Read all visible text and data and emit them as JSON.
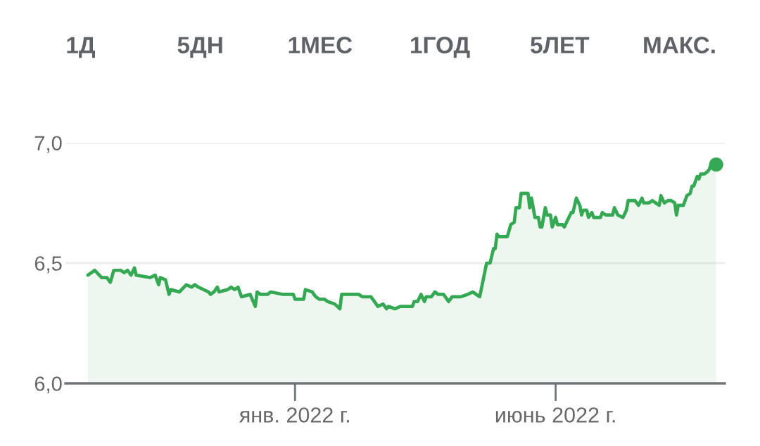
{
  "chart_data": {
    "type": "area",
    "annotations": [
      "1Д",
      "5ДН",
      "1МЕС",
      "1ГОД",
      "5ЛЕТ",
      "МАКС."
    ],
    "x": [
      "2021-09-03",
      "2021-09-07",
      "2021-09-11",
      "2021-09-14",
      "2021-09-16",
      "2021-09-18",
      "2021-09-22",
      "2021-09-24",
      "2021-09-26",
      "2021-09-28",
      "2021-09-30",
      "2021-10-01",
      "2021-10-09",
      "2021-10-12",
      "2021-10-14",
      "2021-10-15",
      "2021-10-18",
      "2021-10-20",
      "2021-10-21",
      "2021-10-26",
      "2021-10-30",
      "2021-11-02",
      "2021-11-04",
      "2021-11-06",
      "2021-11-12",
      "2021-11-13",
      "2021-11-15",
      "2021-11-17",
      "2021-11-18",
      "2021-11-23",
      "2021-11-25",
      "2021-11-27",
      "2021-11-29",
      "2021-12-01",
      "2021-12-06",
      "2021-12-09",
      "2021-12-10",
      "2021-12-12",
      "2021-12-16",
      "2021-12-18",
      "2021-12-25",
      "2021-12-28",
      "2021-12-31",
      "2022-01-01",
      "2022-01-06",
      "2022-01-07",
      "2022-01-11",
      "2022-01-13",
      "2022-01-15",
      "2022-01-18",
      "2022-01-20",
      "2022-01-24",
      "2022-01-27",
      "2022-01-28",
      "2022-02-07",
      "2022-02-09",
      "2022-02-14",
      "2022-02-16",
      "2022-02-18",
      "2022-02-21",
      "2022-02-23",
      "2022-02-24",
      "2022-02-28",
      "2022-03-03",
      "2022-03-07",
      "2022-03-10",
      "2022-03-11",
      "2022-03-13",
      "2022-03-15",
      "2022-03-17",
      "2022-03-18",
      "2022-03-21",
      "2022-03-23",
      "2022-03-25",
      "2022-03-28",
      "2022-03-31",
      "2022-04-02",
      "2022-04-06",
      "2022-04-07",
      "2022-04-11",
      "2022-04-14",
      "2022-04-16",
      "2022-04-18",
      "2022-04-20",
      "2022-04-22",
      "2022-04-24",
      "2022-04-26",
      "2022-04-27",
      "2022-04-28",
      "2022-04-29",
      "2022-05-04",
      "2022-05-06",
      "2022-05-08",
      "2022-05-09",
      "2022-05-11",
      "2022-05-12",
      "2022-05-16",
      "2022-05-17",
      "2022-05-18",
      "2022-05-20",
      "2022-05-22",
      "2022-05-23",
      "2022-05-24",
      "2022-05-26",
      "2022-05-27",
      "2022-05-29",
      "2022-05-30",
      "2022-06-01",
      "2022-06-02",
      "2022-06-05",
      "2022-06-06",
      "2022-06-10",
      "2022-06-11",
      "2022-06-13",
      "2022-06-15",
      "2022-06-16",
      "2022-06-17",
      "2022-06-19",
      "2022-06-20",
      "2022-06-22",
      "2022-06-23",
      "2022-06-27",
      "2022-06-28",
      "2022-06-30",
      "2022-07-04",
      "2022-07-05",
      "2022-07-07",
      "2022-07-10",
      "2022-07-12",
      "2022-07-13",
      "2022-07-17",
      "2022-07-19",
      "2022-07-21",
      "2022-07-22",
      "2022-07-25",
      "2022-07-27",
      "2022-07-29",
      "2022-07-31",
      "2022-08-01",
      "2022-08-03",
      "2022-08-05",
      "2022-08-07",
      "2022-08-09",
      "2022-08-10",
      "2022-08-11",
      "2022-08-14",
      "2022-08-16",
      "2022-08-18",
      "2022-08-19",
      "2022-08-20",
      "2022-08-22",
      "2022-08-23",
      "2022-08-24",
      "2022-08-26",
      "2022-08-28",
      "2022-08-29",
      "2022-08-30",
      "2022-09-02"
    ],
    "series": [
      {
        "color": "#34a853",
        "values": [
          6.45,
          6.47,
          6.44,
          6.44,
          6.42,
          6.47,
          6.47,
          6.46,
          6.47,
          6.45,
          6.48,
          6.45,
          6.44,
          6.45,
          6.41,
          6.44,
          6.43,
          6.37,
          6.39,
          6.38,
          6.41,
          6.4,
          6.41,
          6.4,
          6.38,
          6.37,
          6.38,
          6.4,
          6.38,
          6.39,
          6.4,
          6.39,
          6.4,
          6.36,
          6.37,
          6.32,
          6.38,
          6.37,
          6.37,
          6.38,
          6.37,
          6.37,
          6.37,
          6.35,
          6.35,
          6.39,
          6.38,
          6.36,
          6.35,
          6.35,
          6.34,
          6.33,
          6.31,
          6.37,
          6.37,
          6.36,
          6.36,
          6.34,
          6.32,
          6.33,
          6.31,
          6.32,
          6.31,
          6.32,
          6.32,
          6.32,
          6.34,
          6.34,
          6.37,
          6.34,
          6.36,
          6.36,
          6.38,
          6.37,
          6.37,
          6.34,
          6.36,
          6.36,
          6.36,
          6.37,
          6.38,
          6.37,
          6.36,
          6.43,
          6.5,
          6.5,
          6.56,
          6.56,
          6.62,
          6.61,
          6.61,
          6.66,
          6.67,
          6.73,
          6.73,
          6.79,
          6.79,
          6.73,
          6.77,
          6.69,
          6.69,
          6.65,
          6.65,
          6.73,
          6.7,
          6.7,
          6.65,
          6.69,
          6.66,
          6.66,
          6.65,
          6.71,
          6.71,
          6.77,
          6.74,
          6.7,
          6.72,
          6.72,
          6.69,
          6.71,
          6.69,
          6.69,
          6.71,
          6.7,
          6.7,
          6.73,
          6.7,
          6.69,
          6.72,
          6.76,
          6.76,
          6.74,
          6.77,
          6.75,
          6.75,
          6.76,
          6.75,
          6.74,
          6.78,
          6.75,
          6.76,
          6.76,
          6.75,
          6.7,
          6.74,
          6.74,
          6.78,
          6.79,
          6.82,
          6.82,
          6.86,
          6.85,
          6.87,
          6.87,
          6.88,
          6.89,
          6.91,
          6.91
        ]
      },
      {
        "type": "scatter",
        "color": "#34a853",
        "marker": "circle",
        "x": [
          "2022-09-02"
        ],
        "values": [
          6.91
        ]
      }
    ],
    "xlim": [
      "2021-08-21",
      "2022-09-07"
    ],
    "xticks": [
      {
        "value": "2022-01-01",
        "label": "янв. 2022 г."
      },
      {
        "value": "2022-06-01",
        "label": "июнь 2022 г."
      }
    ],
    "ylim": [
      6.0,
      7.0
    ],
    "yticks": [
      {
        "value": 6.0,
        "label": "6,0"
      },
      {
        "value": 6.5,
        "label": "6,5"
      },
      {
        "value": 7.0,
        "label": "7,0"
      }
    ],
    "grid": "y"
  }
}
